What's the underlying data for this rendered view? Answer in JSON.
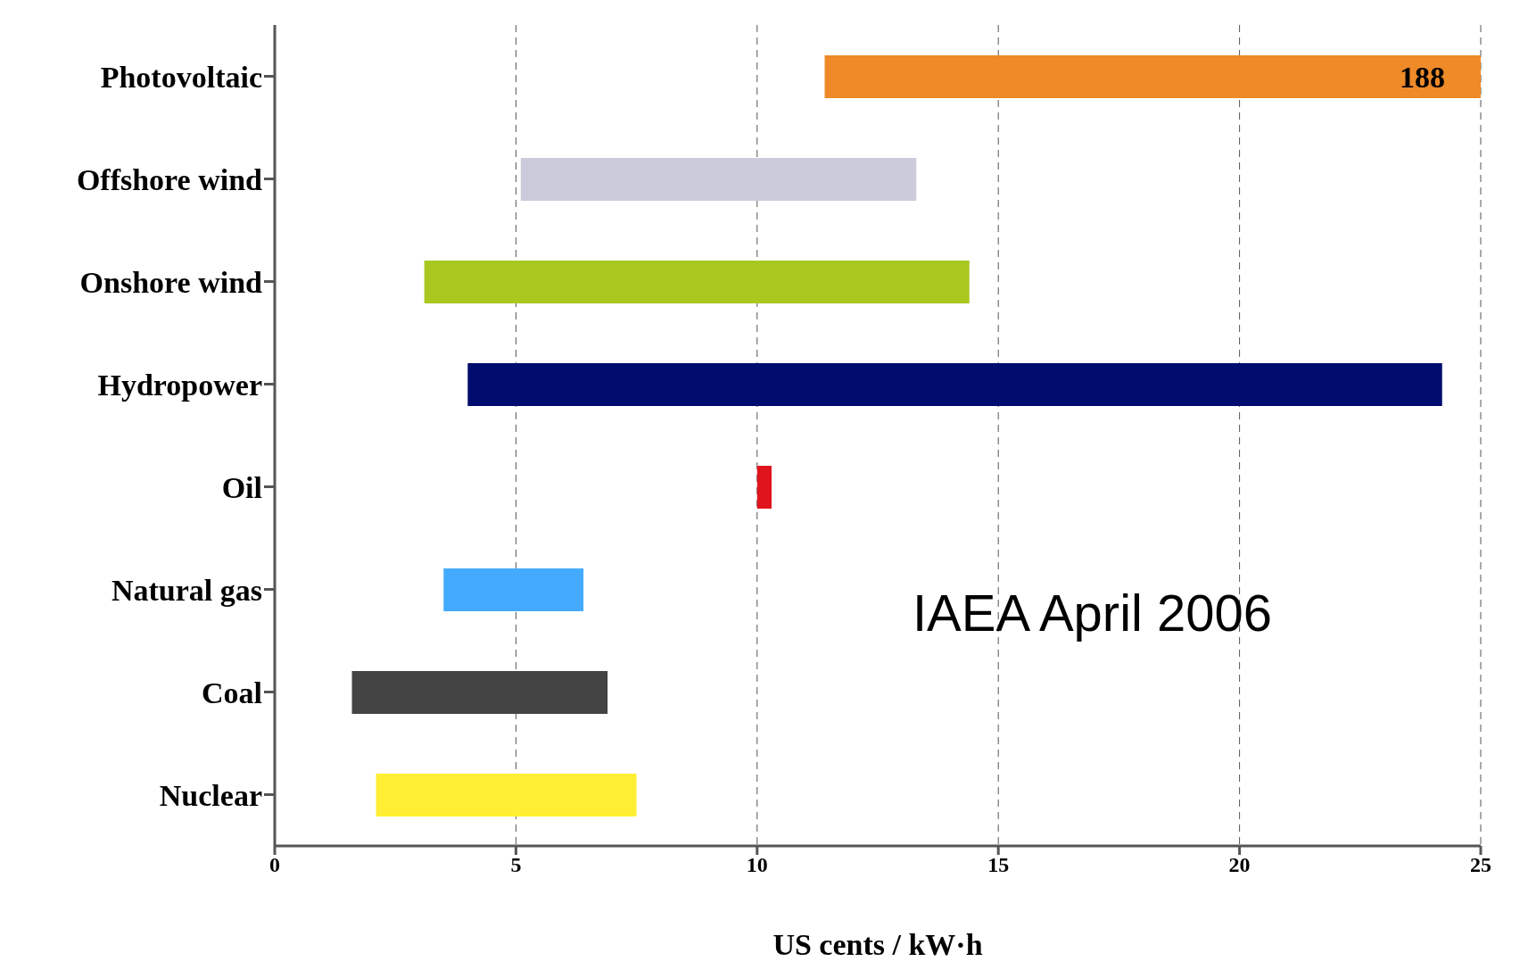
{
  "chart_data": {
    "type": "bar",
    "orientation": "horizontal",
    "xlabel": "US cents / kW·h",
    "categories": [
      "Photovoltaic",
      "Offshore wind",
      "Onshore wind",
      "Hydropower",
      "Oil",
      "Natural gas",
      "Coal",
      "Nuclear"
    ],
    "base": [
      11.4,
      5.1,
      3.1,
      4.0,
      10.0,
      3.5,
      1.6,
      2.1
    ],
    "values": [
      176.6,
      8.2,
      11.3,
      20.2,
      0.3,
      2.9,
      5.3,
      5.4
    ],
    "value_labels": [
      "188",
      null,
      null,
      null,
      null,
      null,
      null,
      null
    ],
    "colors": [
      "#ee8a28",
      "#cbcbdb",
      "#a8c820",
      "#000c6e",
      "#e0141c",
      "#44aaff",
      "#444444",
      "#ffee33"
    ],
    "xlim": [
      0,
      25
    ],
    "xticks": [
      0,
      5,
      10,
      15,
      20,
      25
    ],
    "grid": "x",
    "annotations": [
      "IAEA April 2006"
    ]
  }
}
